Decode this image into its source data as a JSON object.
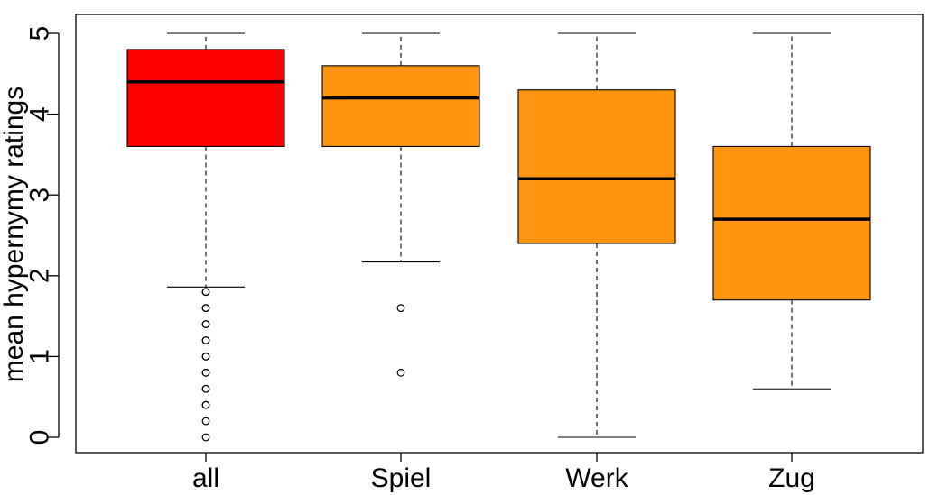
{
  "chart_data": {
    "type": "boxplot",
    "ylabel": "mean hypernymy ratings",
    "xlabel": "",
    "ylim": [
      0,
      5
    ],
    "yticks": [
      "0",
      "1",
      "2",
      "3",
      "4",
      "5"
    ],
    "grid": false,
    "categories": [
      "all",
      "Spiel",
      "Werk",
      "Zug"
    ],
    "boxes": [
      {
        "category": "all",
        "whisker_low": 1.86,
        "q1": 3.6,
        "median": 4.4,
        "q3": 4.8,
        "whisker_high": 5.0,
        "color": "#ff0000",
        "outliers": [
          1.8,
          1.8,
          1.6,
          1.6,
          1.4,
          1.4,
          1.2,
          1.2,
          1.0,
          1.0,
          0.8,
          0.8,
          0.6,
          0.6,
          0.4,
          0.4,
          0.2,
          0.0
        ]
      },
      {
        "category": "Spiel",
        "whisker_low": 2.17,
        "q1": 3.6,
        "median": 4.2,
        "q3": 4.6,
        "whisker_high": 5.0,
        "color": "#ff9410",
        "outliers": [
          1.6,
          0.8
        ]
      },
      {
        "category": "Werk",
        "whisker_low": 0.0,
        "q1": 2.4,
        "median": 3.2,
        "q3": 4.3,
        "whisker_high": 5.0,
        "color": "#ff9410",
        "outliers": []
      },
      {
        "category": "Zug",
        "whisker_low": 0.6,
        "q1": 1.7,
        "median": 2.7,
        "q3": 3.6,
        "whisker_high": 5.0,
        "color": "#ff9410",
        "outliers": []
      }
    ]
  }
}
